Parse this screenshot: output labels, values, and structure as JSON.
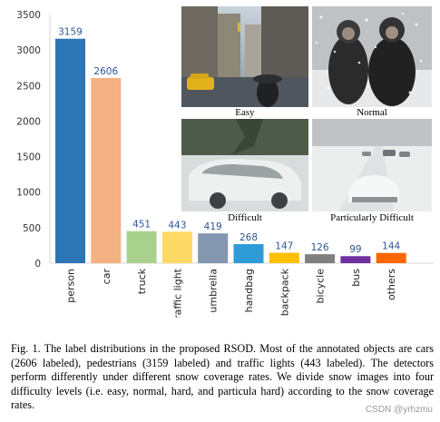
{
  "chart_data": {
    "type": "bar",
    "categories": [
      "person",
      "car",
      "truck",
      "traffic light",
      "umbrella",
      "handbag",
      "backpack",
      "bicycle",
      "bus",
      "others"
    ],
    "values": [
      3159,
      2606,
      451,
      443,
      419,
      268,
      147,
      126,
      99,
      144
    ],
    "colors": [
      "#2e75b6",
      "#f4b183",
      "#a9d18e",
      "#ffd966",
      "#8497b0",
      "#2e9bd6",
      "#ffc000",
      "#7f7f7f",
      "#7030a0",
      "#ff6600"
    ],
    "yticks": [
      0,
      500,
      1000,
      1500,
      2000,
      2500,
      3000,
      3500
    ],
    "ylim": [
      0,
      3500
    ],
    "grid": false,
    "value_label_color": "#2f5597"
  },
  "photos": [
    {
      "id": "easy",
      "label": "Easy",
      "scene": "city-street-rain-icon"
    },
    {
      "id": "normal",
      "label": "Normal",
      "scene": "people-snowfall-icon"
    },
    {
      "id": "difficult",
      "label": "Difficult",
      "scene": "snow-covered-car-icon"
    },
    {
      "id": "particularly-difficult",
      "label": "Particularly Difficult",
      "scene": "snowy-road-cars-icon"
    }
  ],
  "caption": {
    "text": "Fig. 1.   The label distributions in the proposed RSOD. Most of the annotated objects are cars (2606 labeled), pedestrians (3159 labeled) and traffic lights (443 labeled). The detectors perform differently under different snow coverage rates. We divide snow images into four difficulty levels (i.e. easy, normal, hard, and particula hard) according to the snow coverage rates."
  },
  "watermark": "CSDN @yrhzmu"
}
